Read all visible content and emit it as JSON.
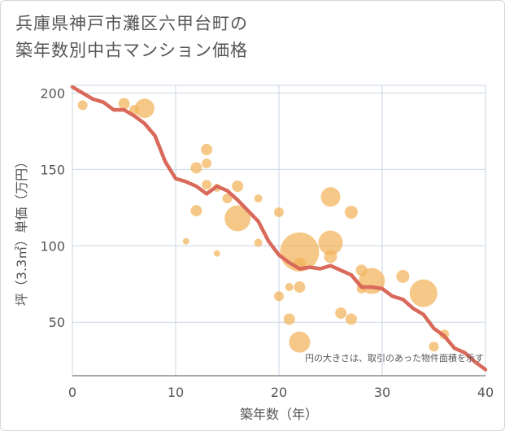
{
  "title_line1": "兵庫県神戸市灘区六甲台町の",
  "title_line2": "築年数別中古マンション価格",
  "chart_data": {
    "type": "scatter",
    "xlabel": "築年数（年）",
    "ylabel": "坪（3.3㎡）単価（万円）",
    "xlim": [
      0,
      40
    ],
    "ylim": [
      15,
      205
    ],
    "xticks": [
      0,
      10,
      20,
      30,
      40
    ],
    "yticks": [
      50,
      100,
      150,
      200
    ],
    "grid": true,
    "annotation": "円の大きさは、取引のあった物件面積を示す",
    "colors": {
      "points": "#f2b35a",
      "line": "#d9695a",
      "grid": "#c9d6e3",
      "axis": "#8a8a8a",
      "text": "#555555"
    },
    "points": [
      {
        "x": 1,
        "y": 192,
        "s": 6
      },
      {
        "x": 5,
        "y": 193,
        "s": 7
      },
      {
        "x": 6,
        "y": 189,
        "s": 6
      },
      {
        "x": 7,
        "y": 190,
        "s": 12
      },
      {
        "x": 11,
        "y": 103,
        "s": 4
      },
      {
        "x": 12,
        "y": 151,
        "s": 7
      },
      {
        "x": 12,
        "y": 123,
        "s": 7
      },
      {
        "x": 13,
        "y": 163,
        "s": 7
      },
      {
        "x": 13,
        "y": 154,
        "s": 6
      },
      {
        "x": 13,
        "y": 140,
        "s": 6
      },
      {
        "x": 14,
        "y": 138,
        "s": 5
      },
      {
        "x": 14,
        "y": 95,
        "s": 4
      },
      {
        "x": 15,
        "y": 131,
        "s": 6
      },
      {
        "x": 16,
        "y": 139,
        "s": 7
      },
      {
        "x": 16,
        "y": 118,
        "s": 16
      },
      {
        "x": 18,
        "y": 131,
        "s": 5
      },
      {
        "x": 18,
        "y": 102,
        "s": 5
      },
      {
        "x": 20,
        "y": 122,
        "s": 6
      },
      {
        "x": 20,
        "y": 67,
        "s": 6
      },
      {
        "x": 21,
        "y": 73,
        "s": 5
      },
      {
        "x": 21,
        "y": 52,
        "s": 7
      },
      {
        "x": 22,
        "y": 96,
        "s": 24
      },
      {
        "x": 22,
        "y": 88,
        "s": 8
      },
      {
        "x": 22,
        "y": 73,
        "s": 7
      },
      {
        "x": 22,
        "y": 37,
        "s": 13
      },
      {
        "x": 25,
        "y": 132,
        "s": 12
      },
      {
        "x": 25,
        "y": 102,
        "s": 15
      },
      {
        "x": 25,
        "y": 93,
        "s": 8
      },
      {
        "x": 26,
        "y": 56,
        "s": 7
      },
      {
        "x": 27,
        "y": 122,
        "s": 8
      },
      {
        "x": 27,
        "y": 52,
        "s": 7
      },
      {
        "x": 28,
        "y": 84,
        "s": 7
      },
      {
        "x": 28,
        "y": 72,
        "s": 6
      },
      {
        "x": 29,
        "y": 77,
        "s": 16
      },
      {
        "x": 32,
        "y": 80,
        "s": 8
      },
      {
        "x": 34,
        "y": 69,
        "s": 17
      },
      {
        "x": 35,
        "y": 34,
        "s": 6
      },
      {
        "x": 36,
        "y": 42,
        "s": 6
      }
    ],
    "series": [
      {
        "x": [
          0,
          1,
          2,
          3,
          4,
          5,
          6,
          7,
          8,
          9,
          10,
          11,
          12,
          13,
          14,
          15,
          16,
          17,
          18,
          19,
          20,
          21,
          22,
          23,
          24,
          25,
          26,
          27,
          28,
          29,
          30,
          31,
          32,
          33,
          34,
          35,
          36,
          37,
          38,
          39,
          40
        ],
        "y": [
          204,
          200,
          196,
          194,
          189,
          189,
          185,
          180,
          172,
          155,
          144,
          142,
          139,
          134,
          139,
          136,
          130,
          123,
          116,
          103,
          94,
          89,
          85,
          86,
          85,
          87,
          84,
          81,
          73,
          73,
          72,
          67,
          65,
          59,
          55,
          46,
          41,
          33,
          30,
          24,
          19
        ]
      }
    ]
  }
}
